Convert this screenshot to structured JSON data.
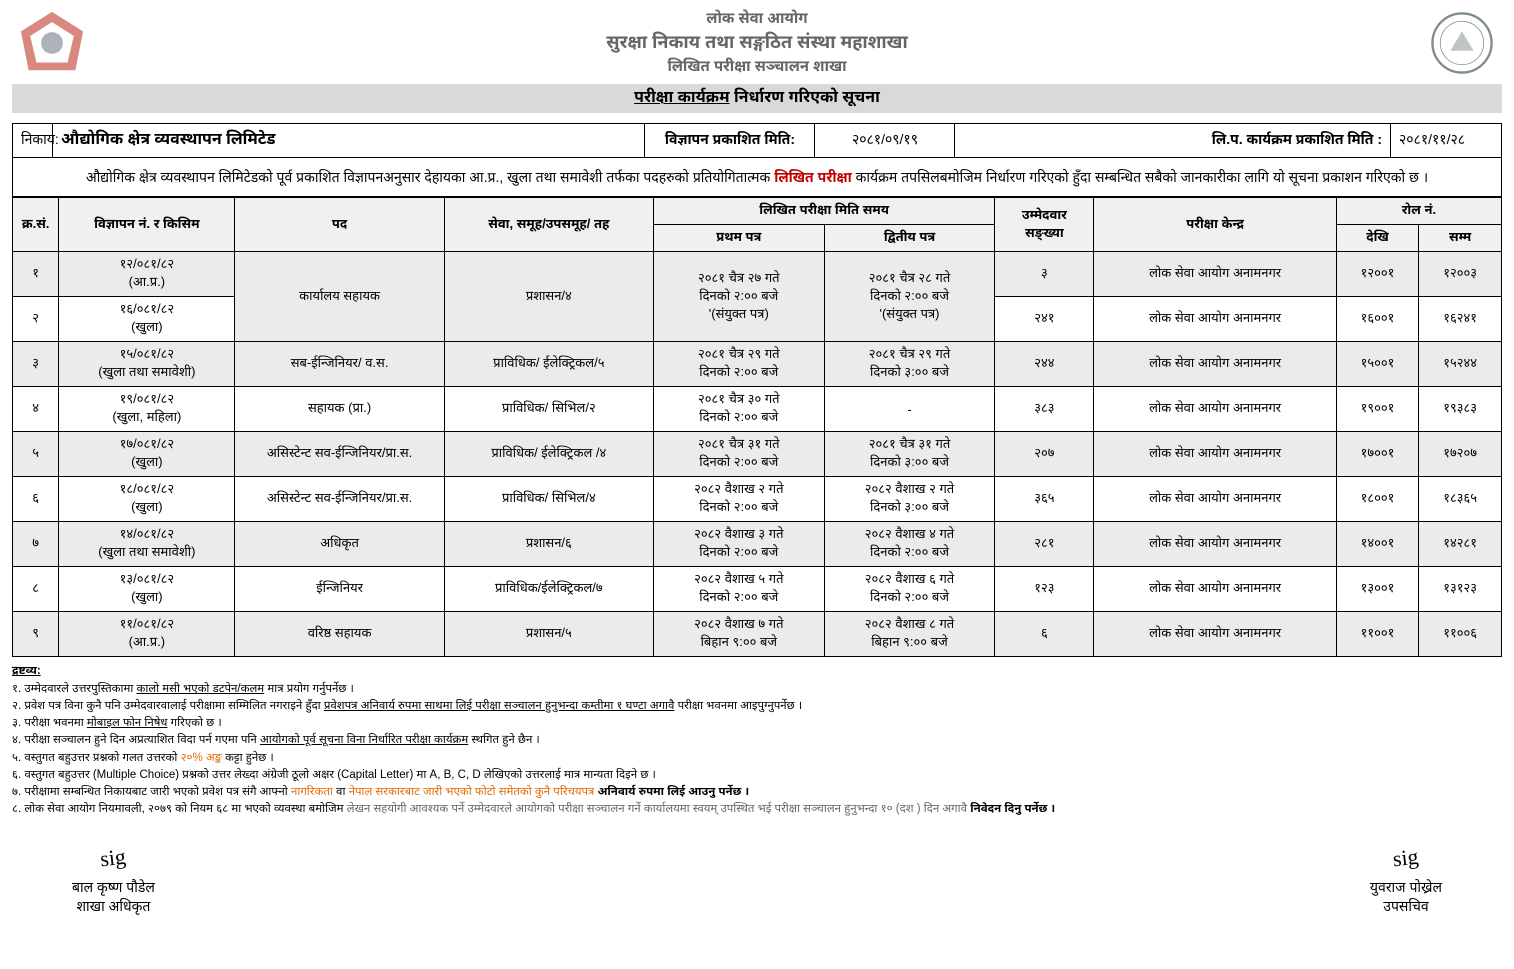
{
  "header": {
    "org_line1": "लोक सेवा आयोग",
    "org_line2": "सुरक्षा निकाय तथा सङ्गठित संस्था महाशाखा",
    "org_line3": "लिखित परीक्षा सञ्चालन शाखा"
  },
  "title": {
    "part1": "परीक्षा कार्यक्रम",
    "part2": " निर्धारण गरिएको सूचना"
  },
  "info": {
    "nikaya_label": "निकाय:",
    "nikaya_value": "औद्योगिक क्षेत्र व्यवस्थापन लिमिटेड",
    "pub_date_label": "विज्ञापन प्रकाशित मिति:",
    "pub_date_value": "२०८१/०९/१९",
    "prog_date_label": "लि.प. कार्यक्रम प्रकाशित मिति :",
    "prog_date_value": "२०८१/११/२८"
  },
  "notice": {
    "pre": "औद्योगिक क्षेत्र व्यवस्थापन लिमिटेडको पूर्व प्रकाशित विज्ञापनअनुसार देहायका आ.प्र., खुला तथा समावेशी तर्फका पदहरुको प्रतियोगितात्मक ",
    "highlight": "लिखित परीक्षा",
    "post": " कार्यक्रम तपसिलबमोजिम निर्धारण गरिएको हुँदा सम्बन्धित सबैको जानकारीका लागि यो सूचना प्रकाशन गरिएको छ ।"
  },
  "columns": {
    "sn": "क्र.सं.",
    "adv": "विज्ञापन नं. र किसिम",
    "post": "पद",
    "service": "सेवा, समूह/उपसमूह/ तह",
    "exam_time": "लिखित परीक्षा मिति समय",
    "paper1": "प्रथम पत्र",
    "paper2": "द्वितीय पत्र",
    "candidates": "उम्मेदवार सङ्ख्या",
    "center": "परीक्षा केन्द्र",
    "roll": "रोल नं.",
    "from": "देखि",
    "to": "सम्म"
  },
  "rows": [
    {
      "sn": "१",
      "adv": "१२/०८१/८२\n(आ.प्र.)",
      "post": "कार्यालय सहायक",
      "service": "प्रशासन/४",
      "p1": "२०८१ चैत्र २७ गते\nदिनको २:०० बजे\n'(संयुक्त पत्र)",
      "p2": "२०८१ चैत्र २८ गते\nदिनको २:०० बजे\n'(संयुक्त पत्र)",
      "cand": "३",
      "center": "लोक सेवा आयोग अनामनगर",
      "from": "१२००१",
      "to": "१२००३",
      "rowspan_post": 2,
      "rowspan_p": 2,
      "shade": true
    },
    {
      "sn": "२",
      "adv": "१६/०८१/८२\n(खुला)",
      "cand": "२४१",
      "center": "लोक सेवा आयोग अनामनगर",
      "from": "१६००१",
      "to": "१६२४१"
    },
    {
      "sn": "३",
      "adv": "१५/०८१/८२\n(खुला तथा समावेशी)",
      "post": "सब-ईन्जिनियर/ व.स.",
      "service": "प्राविधिक/ ईलेक्ट्रिकल/५",
      "p1": "२०८१ चैत्र २९ गते\nदिनको २:०० बजे",
      "p2": "२०८१ चैत्र २९ गते\nदिनको ३:०० बजे",
      "cand": "२४४",
      "center": "लोक सेवा आयोग अनामनगर",
      "from": "१५००१",
      "to": "१५२४४",
      "shade": true
    },
    {
      "sn": "४",
      "adv": "१९/०८१/८२\n(खुला, महिला)",
      "post": "सहायक (प्रा.)",
      "service": "प्राविधिक/ सिभिल/२",
      "p1": "२०८१ चैत्र ३० गते\nदिनको २:०० बजे",
      "p2": "-",
      "cand": "३८३",
      "center": "लोक सेवा आयोग अनामनगर",
      "from": "१९००१",
      "to": "१९३८३"
    },
    {
      "sn": "५",
      "adv": "१७/०८१/८२\n(खुला)",
      "post": "असिस्टेन्ट सव-ईन्जिनियर/प्रा.स.",
      "service": "प्राविधिक/ ईलेक्ट्रिकल /४",
      "p1": "२०८१ चैत्र ३१ गते\nदिनको २:०० बजे",
      "p2": "२०८१ चैत्र ३१ गते\nदिनको ३:०० बजे",
      "cand": "२०७",
      "center": "लोक सेवा आयोग अनामनगर",
      "from": "१७००१",
      "to": "१७२०७",
      "shade": true
    },
    {
      "sn": "६",
      "adv": "१८/०८१/८२\n(खुला)",
      "post": "असिस्टेन्ट सव-ईन्जिनियर/प्रा.स.",
      "service": "प्राविधिक/ सिभिल/४",
      "p1": "२०८२ वैशाख २ गते\nदिनको २:०० बजे",
      "p2": "२०८२ वैशाख २ गते\nदिनको ३:०० बजे",
      "cand": "३६५",
      "center": "लोक सेवा आयोग अनामनगर",
      "from": "१८००१",
      "to": "१८३६५"
    },
    {
      "sn": "७",
      "adv": "१४/०८१/८२\n(खुला तथा समावेशी)",
      "post": "अधिकृत",
      "service": "प्रशासन/६",
      "p1": "२०८२ वैशाख ३ गते\nदिनको २:०० बजे",
      "p2": "२०८२ वैशाख ४ गते\nदिनको २:०० बजे",
      "cand": "२८१",
      "center": "लोक सेवा आयोग अनामनगर",
      "from": "१४००१",
      "to": "१४२८१",
      "shade": true
    },
    {
      "sn": "८",
      "adv": "१३/०८१/८२\n(खुला)",
      "post": "ईन्जिनियर",
      "service": "प्राविधिक/ईलेक्ट्रिकल/७",
      "p1": "२०८२ वैशाख ५ गते\nदिनको २:०० बजे",
      "p2": "२०८२ वैशाख ६ गते\nदिनको २:०० बजे",
      "cand": "१२३",
      "center": "लोक सेवा आयोग अनामनगर",
      "from": "१३००१",
      "to": "१३१२३"
    },
    {
      "sn": "९",
      "adv": "११/०८१/८२\n(आ.प्र.)",
      "post": "वरिष्ठ सहायक",
      "service": "प्रशासन/५",
      "p1": "२०८२ वैशाख ७ गते\nबिहान ९:०० बजे",
      "p2": "२०८२ वैशाख ८ गते\nबिहान ९:०० बजे",
      "cand": "६",
      "center": "लोक सेवा आयोग अनामनगर",
      "from": "११००१",
      "to": "११००६",
      "shade": true
    }
  ],
  "notes": {
    "title": "द्रष्टव्य:",
    "items": [
      {
        "n": "१.",
        "pre": "उम्मेदवारले उत्तरपुस्तिकामा ",
        "ul": "कालो मसी भएको डटपेन/कलम",
        "post": " मात्र प्रयोग गर्नुपर्नेछ ।"
      },
      {
        "n": "२.",
        "pre": "प्रवेश पत्र विना कुनै पनि उम्मेदवारवालाई परीक्षामा सम्मिलित नगराइने हुँदा ",
        "ul": "प्रवेशपत्र अनिवार्य रुपमा साथमा लिई परीक्षा सञ्चालन हुनुभन्दा कम्तीमा १ घण्टा अगावै",
        "post": " परीक्षा भवनमा आइपुग्नुपर्नेछ ।"
      },
      {
        "n": "३.",
        "pre": "परीक्षा भवनमा ",
        "ul": "मोबाइल फोन निषेध",
        "post": " गरिएको छ ।"
      },
      {
        "n": "४.",
        "pre": "परीक्षा सञ्चालन हुने दिन अप्रत्याशित विदा पर्न गएमा पनि ",
        "ul": "आयोगको पूर्व सूचना विना निर्धारित परीक्षा कार्यक्रम",
        "post": " स्थगित हुने छैन ।"
      },
      {
        "n": "५.",
        "pre": "वस्तुगत बहुउत्तर प्रश्नको गलत उत्तरको ",
        "orange": "२०% अङ्क",
        "post": " कट्टा हुनेछ ।"
      },
      {
        "n": "६.",
        "pre": "वस्तुगत बहुउत्तर (Multiple Choice) प्रश्नको उत्तर लेख्दा अंग्रेजी ठूलो अक्षर (Capital Letter) मा  A, B, C, D  लेखिएको उत्तरलाई मात्र मान्यता दिइने छ ।",
        "ul": "",
        "post": ""
      },
      {
        "n": "७.",
        "pre": "परीक्षामा सम्बन्धित निकायबाट जारी भएको प्रवेश पत्र संगै आफ्नो ",
        "orange": "नागरिकता",
        "mid": " वा ",
        "orange2": "नेपाल सरकारबाट जारी भएको फोटो समेतको कुनै परिचयपत्र ",
        "bold": "अनिवार्य रुपमा लिई आउनु पर्नेछ ।"
      },
      {
        "n": "८.",
        "pre": "लोक सेवा आयोग नियमावली, २०७९ को नियम ६८ मा भएको व्यवस्था बमोजिम ",
        "gray": "लेखन सहयोगी आवश्यक पर्ने उम्मेदवारले आयोगको परीक्षा सञ्चालन गर्ने कार्यालयमा स्वयम् उपस्थित भई परीक्षा सञ्चालन हुनुभन्दा १० (दश ) दिन अगावै ",
        "bold": "निवेदन दिनु पर्नेछ ।"
      }
    ]
  },
  "signatures": {
    "left_name": "बाल कृष्ण पौडेल",
    "left_title": "शाखा अधिकृत",
    "right_name": "युवराज पोख्रेल",
    "right_title": "उपसचिव"
  },
  "colors": {
    "header_gray": "#666666",
    "bar_gray": "#d9d9d9",
    "shade": "#ebebeb",
    "highlight_red": "#c00000",
    "orange": "#e36c0a"
  }
}
